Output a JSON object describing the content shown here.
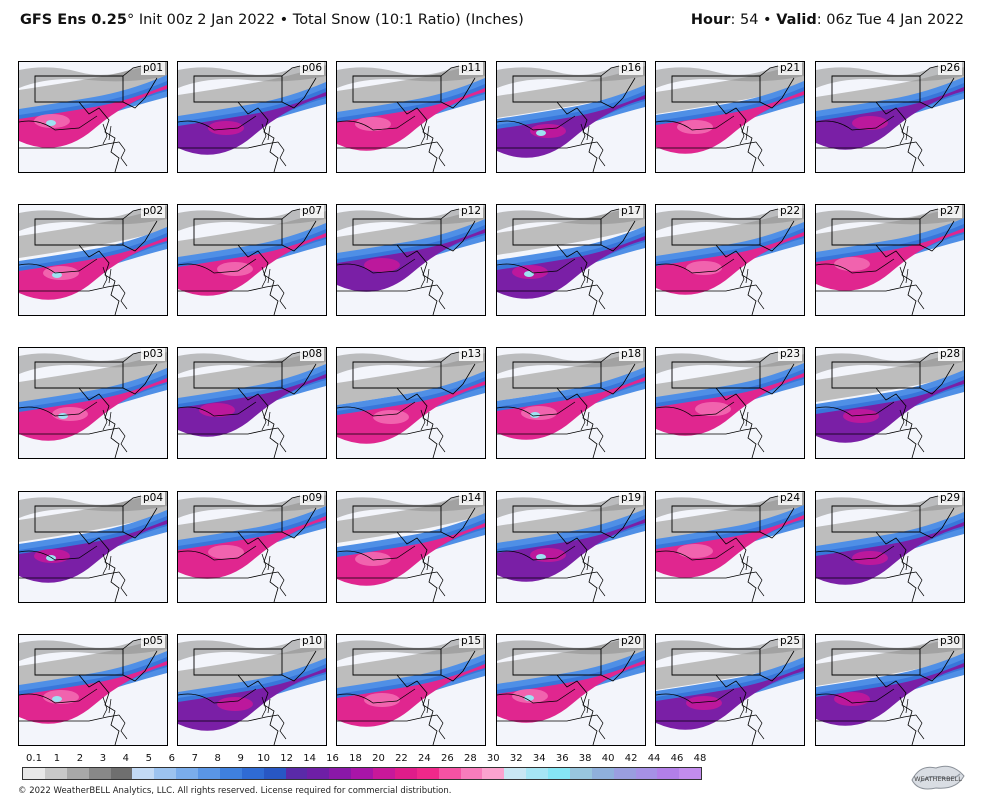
{
  "header": {
    "model": "GFS Ens 0.25",
    "degree": "°",
    "init": "Init 00z 2 Jan 2022",
    "sep": "•",
    "product": "Total Snow (10:1 Ratio) (Inches)",
    "hour_label": "Hour",
    "hour_value": ": 54",
    "valid_label": "Valid",
    "valid_value": ": 06z Tue 4 Jan 2022"
  },
  "panels": [
    "p01",
    "p06",
    "p11",
    "p16",
    "p21",
    "p26",
    "p02",
    "p07",
    "p12",
    "p17",
    "p22",
    "p27",
    "p03",
    "p08",
    "p13",
    "p18",
    "p23",
    "p28",
    "p04",
    "p09",
    "p14",
    "p19",
    "p24",
    "p29",
    "p05",
    "p10",
    "p15",
    "p20",
    "p25",
    "p30"
  ],
  "scale": {
    "ticks": [
      "0.1",
      "1",
      "2",
      "3",
      "4",
      "5",
      "6",
      "7",
      "8",
      "9",
      "10",
      "12",
      "14",
      "16",
      "18",
      "20",
      "22",
      "24",
      "26",
      "28",
      "30",
      "32",
      "34",
      "36",
      "38",
      "40",
      "42",
      "44",
      "46",
      "48"
    ],
    "colors": [
      "#e8e8e8",
      "#c8c8c8",
      "#a8a8a8",
      "#888888",
      "#6f6f6f",
      "#c3daf5",
      "#9cc3f0",
      "#7aadec",
      "#5a96e6",
      "#3f80de",
      "#2f6bd4",
      "#2857c4",
      "#5a2aa8",
      "#6e1fa6",
      "#8a18a8",
      "#a815a8",
      "#c8189a",
      "#e01c8a",
      "#f0288a",
      "#f552a4",
      "#f87cbc",
      "#fba3cf",
      "#c9e7f4",
      "#a6e6f5",
      "#86e6f5",
      "#98c6de",
      "#8fb0dc",
      "#9a9ee0",
      "#a691e6",
      "#b27fe8",
      "#c28ced"
    ]
  },
  "copyright": "© 2022 WeatherBELL Analytics, LLC. All rights reserved. License required for commercial distribution.",
  "logo_text": "WEATHERBELL"
}
